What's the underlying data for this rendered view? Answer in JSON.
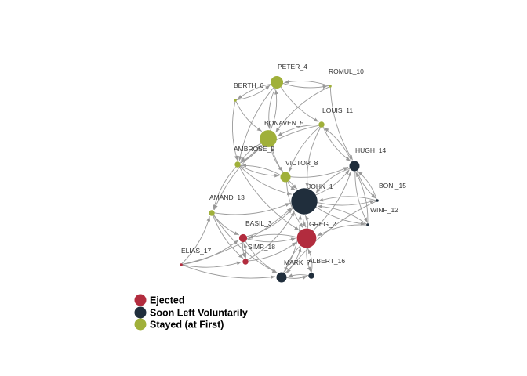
{
  "graph": {
    "groups": {
      "ejected": {
        "label": "Ejected",
        "color": "#B22C3E"
      },
      "left": {
        "label": "Soon Left Voluntarily",
        "color": "#202E3C"
      },
      "stayed": {
        "label": "Stayed (at First)",
        "color": "#A0B03A"
      }
    },
    "nodes": [
      {
        "id": "JOHN_1",
        "label": "JOHN_1",
        "group": "left",
        "weight": 10
      },
      {
        "id": "GREG_2",
        "label": "GREG_2",
        "group": "ejected",
        "weight": 7
      },
      {
        "id": "BASIL_3",
        "label": "BASIL_3",
        "group": "ejected",
        "weight": 2
      },
      {
        "id": "PETER_4",
        "label": "PETER_4",
        "group": "stayed",
        "weight": 4
      },
      {
        "id": "BONAVEN_5",
        "label": "BONAVEN_5",
        "group": "stayed",
        "weight": 6
      },
      {
        "id": "BERTH_6",
        "label": "BERTH_6",
        "group": "stayed",
        "weight": 0
      },
      {
        "id": "MARK_7",
        "label": "MARK_7",
        "group": "left",
        "weight": 3
      },
      {
        "id": "VICTOR_8",
        "label": "VICTOR_8",
        "group": "stayed",
        "weight": 3
      },
      {
        "id": "AMBROSE_9",
        "label": "AMBROSE_9",
        "group": "stayed",
        "weight": 1
      },
      {
        "id": "ROMUL_10",
        "label": "ROMUL_10",
        "group": "stayed",
        "weight": 0
      },
      {
        "id": "LOUIS_11",
        "label": "LOUIS_11",
        "group": "stayed",
        "weight": 1
      },
      {
        "id": "WINF_12",
        "label": "WINF_12",
        "group": "left",
        "weight": 0
      },
      {
        "id": "AMAND_13",
        "label": "AMAND_13",
        "group": "stayed",
        "weight": 1
      },
      {
        "id": "HUGH_14",
        "label": "HUGH_14",
        "group": "left",
        "weight": 3
      },
      {
        "id": "BONI_15",
        "label": "BONI_15",
        "group": "left",
        "weight": 0
      },
      {
        "id": "ALBERT_16",
        "label": "ALBERT_16",
        "group": "left",
        "weight": 1
      },
      {
        "id": "ELIAS_17",
        "label": "ELIAS_17",
        "group": "ejected",
        "weight": 0
      },
      {
        "id": "SIMP_18",
        "label": "SIMP_18",
        "group": "ejected",
        "weight": 1
      }
    ],
    "edges": [
      [
        "PETER_4",
        "BERTH_6"
      ],
      [
        "BERTH_6",
        "PETER_4"
      ],
      [
        "PETER_4",
        "ROMUL_10"
      ],
      [
        "ROMUL_10",
        "PETER_4"
      ],
      [
        "PETER_4",
        "BONAVEN_5"
      ],
      [
        "BONAVEN_5",
        "PETER_4"
      ],
      [
        "PETER_4",
        "AMBROSE_9"
      ],
      [
        "PETER_4",
        "LOUIS_11"
      ],
      [
        "BERTH_6",
        "BONAVEN_5"
      ],
      [
        "BERTH_6",
        "AMBROSE_9"
      ],
      [
        "ROMUL_10",
        "HUGH_14"
      ],
      [
        "ROMUL_10",
        "BONAVEN_5"
      ],
      [
        "LOUIS_11",
        "BONAVEN_5"
      ],
      [
        "LOUIS_11",
        "HUGH_14"
      ],
      [
        "HUGH_14",
        "LOUIS_11"
      ],
      [
        "LOUIS_11",
        "VICTOR_8"
      ],
      [
        "LOUIS_11",
        "AMBROSE_9"
      ],
      [
        "LOUIS_11",
        "JOHN_1"
      ],
      [
        "BONAVEN_5",
        "VICTOR_8"
      ],
      [
        "BONAVEN_5",
        "JOHN_1"
      ],
      [
        "BONAVEN_5",
        "AMAND_13"
      ],
      [
        "BONAVEN_5",
        "AMBROSE_9"
      ],
      [
        "AMBROSE_9",
        "BONAVEN_5"
      ],
      [
        "AMBROSE_9",
        "VICTOR_8"
      ],
      [
        "VICTOR_8",
        "AMBROSE_9"
      ],
      [
        "AMBROSE_9",
        "JOHN_1"
      ],
      [
        "AMBROSE_9",
        "AMAND_13"
      ],
      [
        "AMBROSE_9",
        "GREG_2"
      ],
      [
        "VICTOR_8",
        "JOHN_1"
      ],
      [
        "VICTOR_8",
        "GREG_2"
      ],
      [
        "VICTOR_8",
        "HUGH_14"
      ],
      [
        "JOHN_1",
        "HUGH_14"
      ],
      [
        "HUGH_14",
        "JOHN_1"
      ],
      [
        "JOHN_1",
        "BONI_15"
      ],
      [
        "BONI_15",
        "JOHN_1"
      ],
      [
        "JOHN_1",
        "WINF_12"
      ],
      [
        "WINF_12",
        "JOHN_1"
      ],
      [
        "JOHN_1",
        "GREG_2"
      ],
      [
        "GREG_2",
        "JOHN_1"
      ],
      [
        "HUGH_14",
        "BONI_15"
      ],
      [
        "BONI_15",
        "HUGH_14"
      ],
      [
        "HUGH_14",
        "WINF_12"
      ],
      [
        "WINF_12",
        "HUGH_14"
      ],
      [
        "WINF_12",
        "GREG_2"
      ],
      [
        "GREG_2",
        "HUGH_14"
      ],
      [
        "BONI_15",
        "MARK_7"
      ],
      [
        "GREG_2",
        "BASIL_3"
      ],
      [
        "BASIL_3",
        "GREG_2"
      ],
      [
        "GREG_2",
        "MARK_7"
      ],
      [
        "MARK_7",
        "GREG_2"
      ],
      [
        "GREG_2",
        "ALBERT_16"
      ],
      [
        "ALBERT_16",
        "GREG_2"
      ],
      [
        "MARK_7",
        "ALBERT_16"
      ],
      [
        "ALBERT_16",
        "MARK_7"
      ],
      [
        "BASIL_3",
        "JOHN_1"
      ],
      [
        "BASIL_3",
        "MARK_7"
      ],
      [
        "BASIL_3",
        "SIMP_18"
      ],
      [
        "SIMP_18",
        "BASIL_3"
      ],
      [
        "SIMP_18",
        "JOHN_1"
      ],
      [
        "SIMP_18",
        "GREG_2"
      ],
      [
        "ELIAS_17",
        "BASIL_3"
      ],
      [
        "ELIAS_17",
        "SIMP_18"
      ],
      [
        "ELIAS_17",
        "AMAND_13"
      ],
      [
        "ELIAS_17",
        "MARK_7"
      ],
      [
        "ELIAS_17",
        "JOHN_1"
      ],
      [
        "AMAND_13",
        "BASIL_3"
      ],
      [
        "AMAND_13",
        "SIMP_18"
      ],
      [
        "AMAND_13",
        "JOHN_1"
      ],
      [
        "AMAND_13",
        "MARK_7"
      ],
      [
        "MARK_7",
        "JOHN_1"
      ]
    ]
  },
  "legend": {
    "items": [
      {
        "group": "ejected",
        "label": "Ejected"
      },
      {
        "group": "left",
        "label": "Soon Left Voluntarily"
      },
      {
        "group": "stayed",
        "label": "Stayed (at First)"
      }
    ]
  }
}
